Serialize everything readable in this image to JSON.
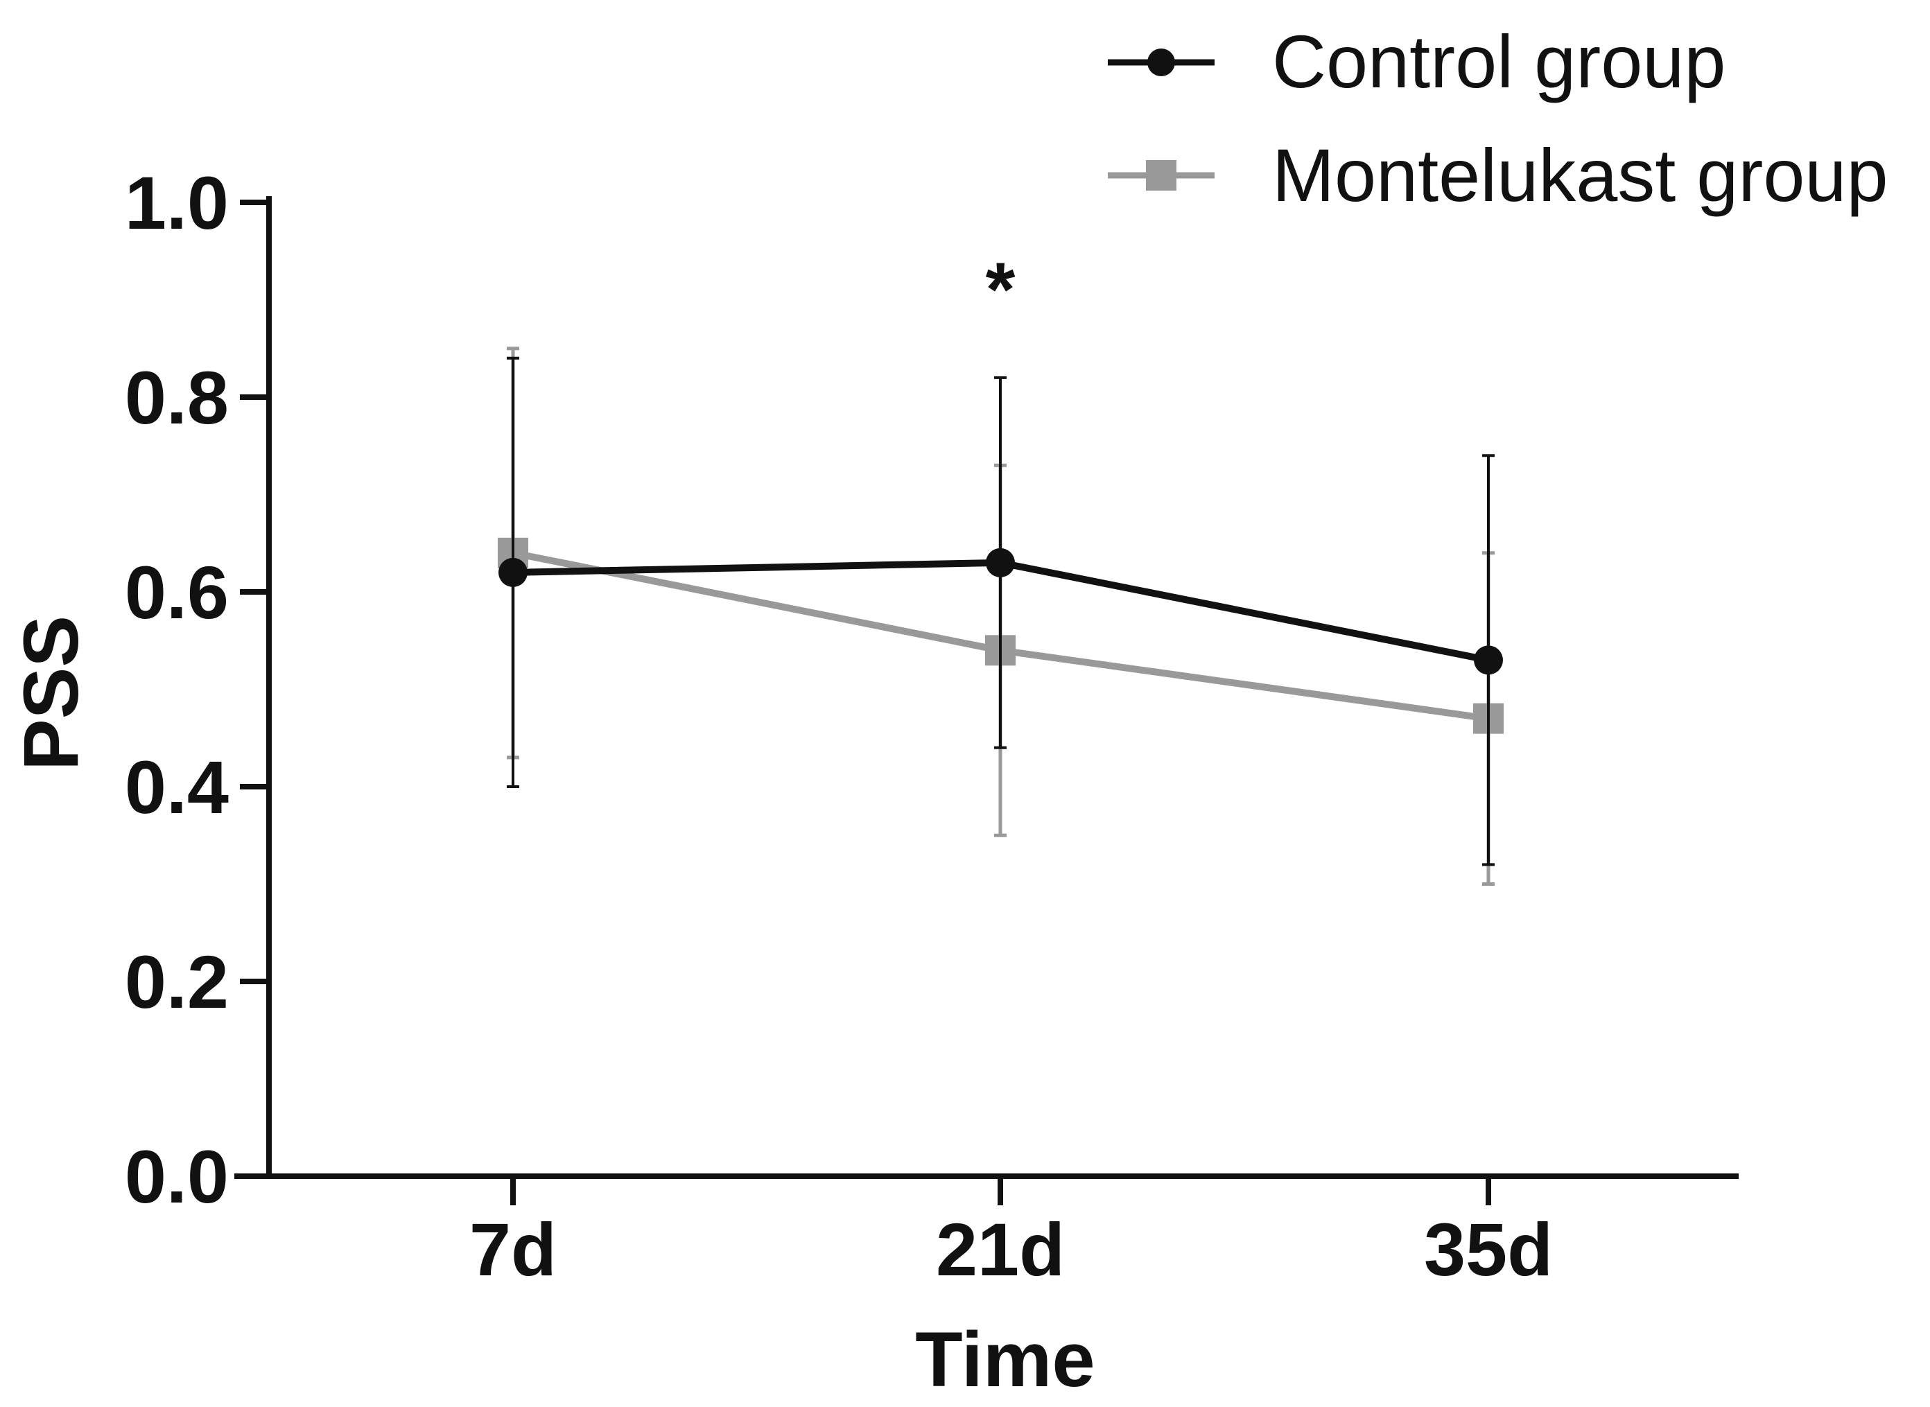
{
  "chart_data": {
    "type": "line",
    "title": "",
    "xlabel": "Time",
    "ylabel": "PSS",
    "categories": [
      "7d",
      "21d",
      "35d"
    ],
    "ylim": [
      0,
      1.0
    ],
    "yticks": [
      "0.0",
      "0.2",
      "0.4",
      "0.6",
      "0.8",
      "1.0"
    ],
    "ytick_values": [
      0,
      0.2,
      0.4,
      0.6,
      0.8,
      1.0
    ],
    "grid": false,
    "legend_position": "top-right",
    "series": [
      {
        "name": "Control group",
        "marker": "circle",
        "color": "#111111",
        "values": [
          0.62,
          0.63,
          0.53
        ],
        "error_low": [
          0.4,
          0.44,
          0.32
        ],
        "error_high": [
          0.84,
          0.82,
          0.74
        ]
      },
      {
        "name": "Montelukast group",
        "marker": "square",
        "color": "#999999",
        "values": [
          0.64,
          0.54,
          0.47
        ],
        "error_low": [
          0.43,
          0.35,
          0.3
        ],
        "error_high": [
          0.85,
          0.73,
          0.64
        ]
      }
    ],
    "annotations": [
      {
        "text": "*",
        "category": "21d",
        "y": 0.93
      }
    ]
  }
}
